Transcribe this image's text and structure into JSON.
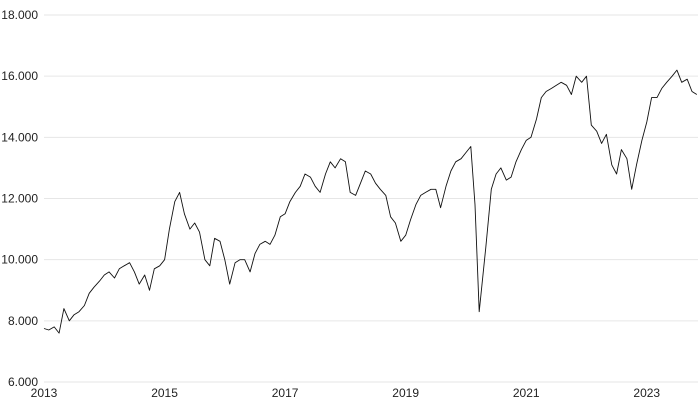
{
  "chart_data": {
    "type": "line",
    "title": "",
    "xlabel": "",
    "ylabel": "",
    "grid": "horizontal",
    "legend": "none",
    "line_color": "#111111",
    "grid_color": "#e6e6e6",
    "xlim": [
      2013.0,
      2023.85
    ],
    "ylim": [
      6000,
      18000
    ],
    "x_ticks": [
      2013,
      2015,
      2017,
      2019,
      2021,
      2023
    ],
    "x_tick_labels": [
      "2013",
      "2015",
      "2017",
      "2019",
      "2021",
      "2023"
    ],
    "y_ticks": [
      6000,
      8000,
      10000,
      12000,
      14000,
      16000,
      18000
    ],
    "y_tick_labels": [
      "6.000",
      "8.000",
      "10.000",
      "12.000",
      "14.000",
      "16.000",
      "18.000"
    ],
    "series": [
      {
        "x": [
          2013.0,
          2013.08,
          2013.17,
          2013.25,
          2013.33,
          2013.42,
          2013.5,
          2013.58,
          2013.67,
          2013.75,
          2013.83,
          2013.92,
          2014.0,
          2014.08,
          2014.17,
          2014.25,
          2014.33,
          2014.42,
          2014.5,
          2014.58,
          2014.67,
          2014.75,
          2014.83,
          2014.92,
          2015.0,
          2015.08,
          2015.17,
          2015.25,
          2015.33,
          2015.42,
          2015.5,
          2015.58,
          2015.67,
          2015.75,
          2015.83,
          2015.92,
          2016.0,
          2016.08,
          2016.17,
          2016.25,
          2016.33,
          2016.42,
          2016.5,
          2016.58,
          2016.67,
          2016.75,
          2016.83,
          2016.92,
          2017.0,
          2017.08,
          2017.17,
          2017.25,
          2017.33,
          2017.42,
          2017.5,
          2017.58,
          2017.67,
          2017.75,
          2017.83,
          2017.92,
          2018.0,
          2018.08,
          2018.17,
          2018.25,
          2018.33,
          2018.42,
          2018.5,
          2018.58,
          2018.67,
          2018.75,
          2018.83,
          2018.92,
          2019.0,
          2019.08,
          2019.17,
          2019.25,
          2019.33,
          2019.42,
          2019.5,
          2019.58,
          2019.67,
          2019.75,
          2019.83,
          2019.92,
          2020.0,
          2020.08,
          2020.15,
          2020.22,
          2020.33,
          2020.42,
          2020.5,
          2020.58,
          2020.67,
          2020.75,
          2020.83,
          2020.92,
          2021.0,
          2021.08,
          2021.17,
          2021.25,
          2021.33,
          2021.42,
          2021.5,
          2021.58,
          2021.67,
          2021.75,
          2021.83,
          2021.92,
          2022.0,
          2022.08,
          2022.17,
          2022.25,
          2022.33,
          2022.42,
          2022.5,
          2022.58,
          2022.67,
          2022.75,
          2022.83,
          2022.92,
          2023.0,
          2023.08,
          2023.17,
          2023.25,
          2023.33,
          2023.42,
          2023.5,
          2023.58,
          2023.67,
          2023.75,
          2023.83
        ],
        "y": [
          7750,
          7700,
          7800,
          7600,
          8400,
          8000,
          8200,
          8300,
          8500,
          8900,
          9100,
          9300,
          9500,
          9600,
          9400,
          9700,
          9800,
          9900,
          9600,
          9200,
          9500,
          9000,
          9700,
          9800,
          10000,
          11000,
          11900,
          12200,
          11500,
          11000,
          11200,
          10900,
          10000,
          9800,
          10700,
          10600,
          10000,
          9200,
          9900,
          10000,
          10000,
          9600,
          10200,
          10500,
          10600,
          10500,
          10800,
          11400,
          11500,
          11900,
          12200,
          12400,
          12800,
          12700,
          12400,
          12200,
          12800,
          13200,
          13000,
          13300,
          13200,
          12200,
          12100,
          12500,
          12900,
          12800,
          12500,
          12300,
          12100,
          11400,
          11200,
          10600,
          10800,
          11300,
          11800,
          12100,
          12200,
          12300,
          12300,
          11700,
          12400,
          12900,
          13200,
          13300,
          13500,
          13700,
          11800,
          8300,
          10400,
          12300,
          12800,
          13000,
          12600,
          12700,
          13200,
          13600,
          13900,
          14000,
          14600,
          15300,
          15500,
          15600,
          15700,
          15800,
          15700,
          15400,
          16000,
          15800,
          16000,
          14400,
          14200,
          13800,
          14100,
          13100,
          12800,
          13600,
          13300,
          12300,
          13100,
          13900,
          14500,
          15300,
          15300,
          15600,
          15800,
          16000,
          16200,
          15800,
          15900,
          15500,
          15400
        ]
      }
    ]
  }
}
